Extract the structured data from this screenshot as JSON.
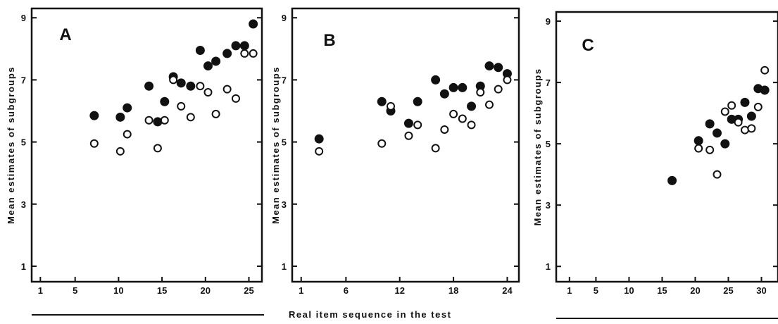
{
  "shared": {
    "xlabel": "Real item sequence in the test",
    "legend": {
      "filled_marker": "●",
      "open_marker": "○"
    }
  },
  "chart_data": [
    {
      "type": "scatter",
      "panel": "A",
      "ylabel": "Mean estimates of subgroups",
      "xlim": [
        0,
        26.5
      ],
      "ylim": [
        0.5,
        9.3
      ],
      "xticks": [
        1,
        5,
        10,
        15,
        20,
        25
      ],
      "yticks": [
        1,
        3,
        5,
        7,
        9
      ],
      "grid": false,
      "series": [
        {
          "marker": "filled",
          "points": [
            [
              7.2,
              5.85
            ],
            [
              10.2,
              5.8
            ],
            [
              11,
              6.1
            ],
            [
              13.5,
              6.8
            ],
            [
              14.5,
              5.65
            ],
            [
              15.3,
              6.3
            ],
            [
              16.3,
              7.1
            ],
            [
              17.2,
              6.9
            ],
            [
              18.3,
              6.8
            ],
            [
              19.4,
              7.95
            ],
            [
              20.3,
              7.45
            ],
            [
              21.2,
              7.6
            ],
            [
              22.5,
              7.85
            ],
            [
              23.5,
              8.1
            ],
            [
              24.5,
              8.1
            ],
            [
              25.5,
              8.8
            ]
          ]
        },
        {
          "marker": "open",
          "points": [
            [
              7.2,
              4.95
            ],
            [
              10.2,
              4.7
            ],
            [
              11,
              5.25
            ],
            [
              13.5,
              5.7
            ],
            [
              14.5,
              4.8
            ],
            [
              15.3,
              5.7
            ],
            [
              16.3,
              7.0
            ],
            [
              17.2,
              6.15
            ],
            [
              18.3,
              5.8
            ],
            [
              19.4,
              6.8
            ],
            [
              20.3,
              6.6
            ],
            [
              21.2,
              5.9
            ],
            [
              22.5,
              6.7
            ],
            [
              23.5,
              6.4
            ],
            [
              24.5,
              7.85
            ],
            [
              25.5,
              7.85
            ]
          ]
        }
      ]
    },
    {
      "type": "scatter",
      "panel": "B",
      "ylabel": "Mean estimates of subgroups",
      "xlim": [
        0,
        25.3
      ],
      "ylim": [
        0.5,
        9.3
      ],
      "xticks": [
        1,
        6,
        12,
        18,
        24
      ],
      "yticks": [
        1,
        3,
        5,
        7,
        9
      ],
      "grid": false,
      "series": [
        {
          "marker": "filled",
          "points": [
            [
              3,
              5.1
            ],
            [
              10,
              6.3
            ],
            [
              11,
              6.0
            ],
            [
              13,
              5.6
            ],
            [
              14,
              6.3
            ],
            [
              16,
              7.0
            ],
            [
              17,
              6.55
            ],
            [
              18,
              6.75
            ],
            [
              19,
              6.75
            ],
            [
              20,
              6.15
            ],
            [
              21,
              6.8
            ],
            [
              22,
              7.45
            ],
            [
              23,
              7.4
            ],
            [
              24,
              7.2
            ]
          ]
        },
        {
          "marker": "open",
          "points": [
            [
              3,
              4.7
            ],
            [
              10,
              4.95
            ],
            [
              11,
              6.15
            ],
            [
              13,
              5.2
            ],
            [
              14,
              5.55
            ],
            [
              16,
              4.8
            ],
            [
              17,
              5.4
            ],
            [
              18,
              5.9
            ],
            [
              19,
              5.75
            ],
            [
              20,
              5.55
            ],
            [
              21,
              6.6
            ],
            [
              22,
              6.2
            ],
            [
              23,
              6.7
            ],
            [
              24,
              7.0
            ]
          ]
        }
      ]
    },
    {
      "type": "scatter",
      "panel": "C",
      "ylabel": "Mean estimates of subgroups",
      "xlim": [
        -1,
        32.5
      ],
      "ylim": [
        0.5,
        9.3
      ],
      "xticks": [
        1,
        5,
        10,
        15,
        20,
        25,
        30
      ],
      "yticks": [
        1,
        3,
        5,
        7,
        9
      ],
      "grid": false,
      "series": [
        {
          "marker": "filled",
          "points": [
            [
              16.5,
              3.8
            ],
            [
              20.5,
              5.1
            ],
            [
              22.2,
              5.65
            ],
            [
              23.3,
              5.35
            ],
            [
              24.5,
              5.0
            ],
            [
              25.5,
              5.8
            ],
            [
              26.5,
              5.8
            ],
            [
              27.5,
              6.35
            ],
            [
              28.5,
              5.9
            ],
            [
              29.5,
              6.8
            ],
            [
              30.5,
              6.75
            ]
          ]
        },
        {
          "marker": "open",
          "points": [
            [
              20.5,
              4.85
            ],
            [
              22.2,
              4.8
            ],
            [
              23.3,
              4.0
            ],
            [
              24.5,
              6.05
            ],
            [
              25.5,
              6.25
            ],
            [
              26.5,
              5.7
            ],
            [
              27.5,
              5.45
            ],
            [
              28.5,
              5.5
            ],
            [
              29.5,
              6.2
            ],
            [
              30.5,
              7.4
            ]
          ]
        }
      ]
    }
  ]
}
